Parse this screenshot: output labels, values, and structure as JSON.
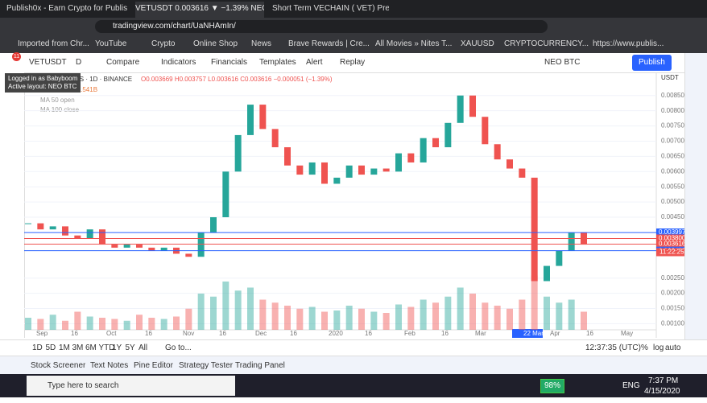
{
  "browser": {
    "tabs": [
      "Publish0x - Earn Crypto for Publish",
      "VETUSDT 0.003616 ▼ −1.39% NEO",
      "Short Term VECHAIN ( VET) Predic"
    ],
    "address": "tradingview.com/chart/UaNHAmIn/",
    "bookmarks": [
      "Imported from Chr...",
      "YouTube",
      "Crypto",
      "Online Shop",
      "News",
      "Brave Rewards | Cre...",
      "All Movies » Nites T...",
      "XAUUSD",
      "CRYPTOCURRENCY...",
      "https://www.publis..."
    ]
  },
  "toolbar": {
    "symbol": "VETUSDT",
    "interval": "D",
    "items": [
      "Compare",
      "Indicators",
      "Financials",
      "Templates",
      "Alert",
      "Replay"
    ],
    "layout": "NEO BTC",
    "publish": "Publish",
    "badge": "11"
  },
  "tooltip": [
    "Logged in as Babyboom",
    "Active layout: NEO BTC"
  ],
  "legend": {
    "symbol": "VeChain / TetherUS · 1D · BINANCE",
    "ohlc": "O0.003669 H0.003757 L0.003616 C0.003616 −0.000051 (−1.39%)",
    "volume": "Vol 20  146.114M  1.541B",
    "studies": [
      "MA 50 open",
      "MA 100 close"
    ]
  },
  "chart_data": {
    "type": "candlestick",
    "currency": "USDT",
    "closes": [
      0.0043,
      0.0041,
      0.0042,
      0.0039,
      0.0038,
      0.0041,
      0.0036,
      0.0035,
      0.0036,
      0.0035,
      0.0034,
      0.0035,
      0.0033,
      0.0032,
      0.004,
      0.0045,
      0.006,
      0.0072,
      0.0082,
      0.0074,
      0.0068,
      0.0062,
      0.0059,
      0.0063,
      0.0056,
      0.0058,
      0.0062,
      0.0059,
      0.0061,
      0.006,
      0.0066,
      0.0063,
      0.0071,
      0.0068,
      0.0076,
      0.0085,
      0.0078,
      0.0069,
      0.0064,
      0.0061,
      0.0058,
      0.0024,
      0.0029,
      0.0034,
      0.004,
      0.0036
    ],
    "volume": [
      20,
      18,
      25,
      15,
      30,
      22,
      20,
      18,
      15,
      25,
      20,
      18,
      22,
      35,
      60,
      55,
      80,
      65,
      70,
      50,
      45,
      40,
      35,
      38,
      30,
      32,
      40,
      35,
      30,
      28,
      42,
      38,
      50,
      45,
      55,
      70,
      60,
      45,
      40,
      35,
      50,
      90,
      55,
      45,
      50,
      30
    ],
    "volume_lim": [
      0,
      100
    ],
    "up_color": "#26a69a",
    "down_color": "#ef5350",
    "ylim": [
      0.0008,
      0.00926
    ],
    "yticks": [
      {
        "value": 0.0085,
        "label": "0.008500"
      },
      {
        "value": 0.008,
        "label": "0.008000"
      },
      {
        "value": 0.0075,
        "label": "0.007500"
      },
      {
        "value": 0.007,
        "label": "0.007000"
      },
      {
        "value": 0.0065,
        "label": "0.006500"
      },
      {
        "value": 0.006,
        "label": "0.006000"
      },
      {
        "value": 0.0055,
        "label": "0.005500"
      },
      {
        "value": 0.005,
        "label": "0.005000"
      },
      {
        "value": 0.0045,
        "label": "0.004500"
      },
      {
        "value": 0.0025,
        "label": "0.002500"
      },
      {
        "value": 0.002,
        "label": "0.002000"
      },
      {
        "value": 0.0015,
        "label": "0.001500"
      },
      {
        "value": 0.001,
        "label": "0.001000"
      }
    ],
    "levels": [
      {
        "value": 0.003997,
        "label": "0.003997",
        "color": "#2962ff"
      },
      {
        "value": 0.0038,
        "label": "0.003800",
        "color": "#ef5350"
      },
      {
        "value": 0.003616,
        "label": "0.003616",
        "color": "#ef5350"
      },
      {
        "value": 0.0034,
        "label": "0.003400",
        "color": "#2962ff"
      }
    ],
    "countdown": "11:22:25",
    "x_labels": [
      "Sep",
      "16",
      "Oct",
      "16",
      "Nov",
      "16",
      "Dec",
      "16",
      "2020",
      "16",
      "Feb",
      "16",
      "Mar",
      "22 Mar '20",
      "Apr",
      "16",
      "May"
    ]
  },
  "bottom": {
    "ranges": [
      "1D",
      "5D",
      "1M",
      "3M",
      "6M",
      "YTD",
      "1Y",
      "5Y",
      "All"
    ],
    "goto": "Go to...",
    "time": "12:37:35 (UTC)",
    "scale": [
      "%",
      "log",
      "auto"
    ],
    "tabs": [
      "Stock Screener",
      "Text Notes",
      "Pine Editor",
      "Strategy Tester",
      "Trading Panel"
    ]
  },
  "taskbar": {
    "search": "Type here to search",
    "battery": "98%",
    "lang": "ENG",
    "time": "7:37 PM",
    "date": "4/15/2020"
  }
}
